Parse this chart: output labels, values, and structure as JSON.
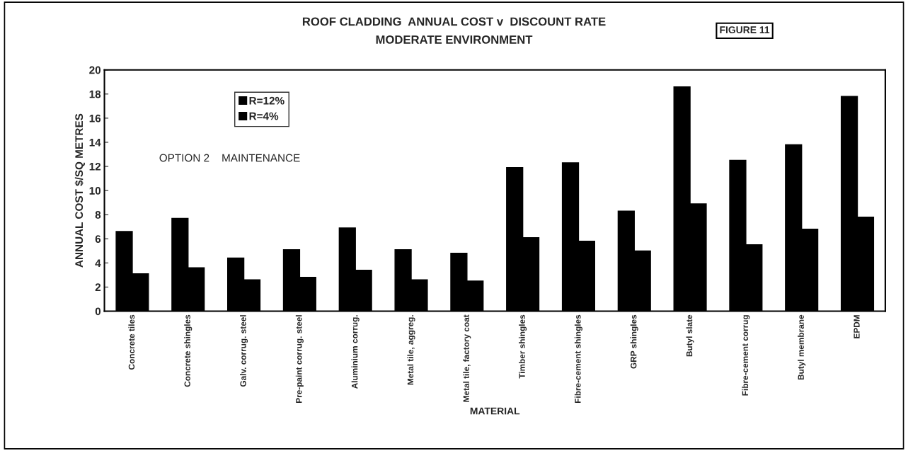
{
  "chart_data": {
    "type": "bar",
    "title": "ROOF CLADDING  ANNUAL COST v  DISCOUNT RATE",
    "subtitle": "MODERATE ENVIRONMENT",
    "xlabel": "MATERIAL",
    "ylabel": "ANNUAL COST $/SQ METRES",
    "categories": [
      "Concrete tiles",
      "Concrete shingles",
      "Galv. corrug. steel",
      "Pre-paint corrug. steel",
      "Aluminium corrug.",
      "Metal tile, aggreg.",
      "Metal tile, factory coat",
      "Timber shingles",
      "Fibre-cement shingles",
      "GRP shingles",
      "Butyl slate",
      "Fibre-cement corrug",
      "Butyl membrane",
      "EPDM"
    ],
    "series": [
      {
        "name": "R=12%",
        "color": "#000000",
        "values": [
          6.6,
          7.7,
          4.4,
          5.1,
          6.9,
          5.1,
          4.8,
          11.9,
          12.3,
          8.3,
          18.6,
          12.5,
          13.8,
          17.8
        ]
      },
      {
        "name": "R=4%",
        "color": "#000000",
        "values": [
          3.1,
          3.6,
          2.6,
          2.8,
          3.4,
          2.6,
          2.5,
          6.1,
          5.8,
          5.0,
          8.9,
          5.5,
          6.8,
          7.8
        ]
      }
    ],
    "ylim": [
      0,
      20
    ],
    "yticks": [
      0,
      2,
      4,
      6,
      8,
      10,
      12,
      14,
      16,
      18,
      20
    ],
    "grid": false,
    "legend": "top left",
    "annotations": [
      "FIGURE 11",
      "OPTION 2    MAINTENANCE"
    ]
  }
}
